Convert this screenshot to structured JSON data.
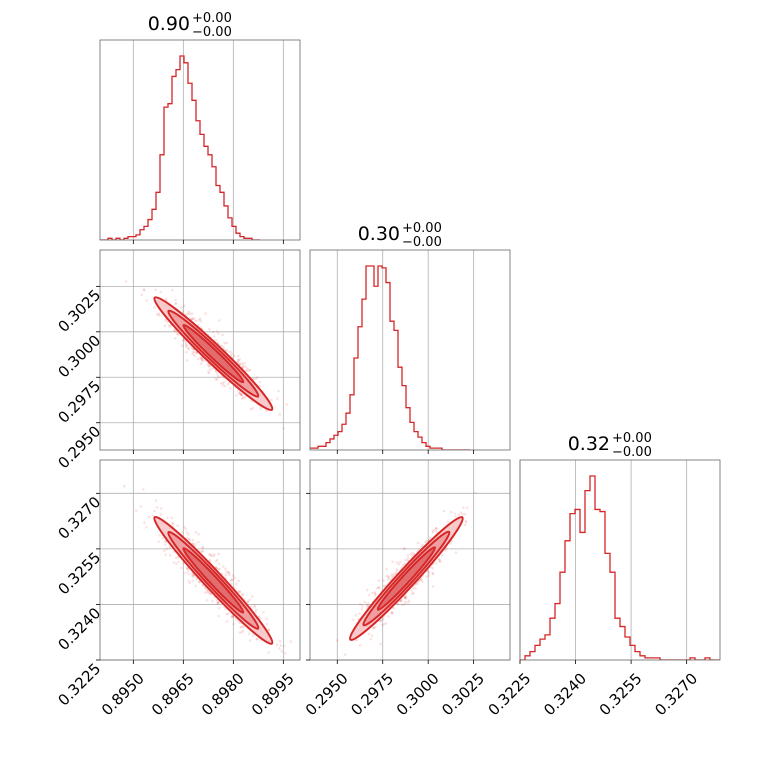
{
  "chart_data": [
    {
      "type": "histogram",
      "parameter": "p1",
      "panel": [
        0,
        0
      ],
      "title": {
        "value": "0.90",
        "upper": "+0.00",
        "lower": "−0.00"
      },
      "xlim": [
        0.894,
        0.9
      ],
      "xticks": [
        0.895,
        0.8965,
        0.898,
        0.8995
      ],
      "bin_edges_start": 0.894,
      "bin_width": 0.00012,
      "counts": [
        0,
        0,
        1,
        0,
        1,
        0,
        1,
        2,
        2,
        3,
        6,
        8,
        12,
        18,
        28,
        50,
        78,
        80,
        96,
        100,
        108,
        104,
        92,
        82,
        70,
        62,
        55,
        50,
        43,
        32,
        28,
        20,
        13,
        8,
        4,
        2,
        1,
        1,
        0,
        0
      ],
      "color": "#d62728"
    },
    {
      "type": "histogram",
      "parameter": "p2",
      "panel": [
        1,
        1
      ],
      "title": {
        "value": "0.30",
        "upper": "+0.00",
        "lower": "−0.00"
      },
      "xlim": [
        0.2935,
        0.3045
      ],
      "xticks": [
        0.295,
        0.2975,
        0.3,
        0.3025
      ],
      "bin_edges_start": 0.2935,
      "bin_width": 0.00022,
      "counts": [
        1,
        1,
        2,
        2,
        4,
        6,
        8,
        10,
        14,
        20,
        30,
        50,
        67,
        82,
        100,
        100,
        89,
        100,
        99,
        91,
        70,
        65,
        45,
        35,
        23,
        15,
        10,
        7,
        4,
        2,
        1,
        1,
        1,
        0,
        0,
        0,
        0,
        0,
        0,
        0
      ],
      "color": "#d62728"
    },
    {
      "type": "histogram",
      "parameter": "p3",
      "panel": [
        2,
        2
      ],
      "title": {
        "value": "0.32",
        "upper": "+0.00",
        "lower": "−0.00"
      },
      "xlim": [
        0.3225,
        0.3279
      ],
      "xticks": [
        0.3225,
        0.324,
        0.3255,
        0.327
      ],
      "bin_edges_start": 0.3225,
      "bin_width": 0.000135,
      "counts": [
        0,
        2,
        4,
        7,
        10,
        12,
        20,
        27,
        42,
        57,
        70,
        72,
        61,
        81,
        88,
        72,
        71,
        51,
        42,
        20,
        16,
        11,
        7,
        4,
        2,
        1,
        1,
        1,
        0,
        0,
        0,
        0,
        0,
        0,
        1,
        0,
        0,
        1,
        0,
        0
      ],
      "color": "#d62728"
    },
    {
      "type": "scatter",
      "panel": [
        1,
        0
      ],
      "x_param": "p1",
      "y_param": "p2",
      "xlim": [
        0.894,
        0.9
      ],
      "ylim": [
        0.2935,
        0.3045
      ],
      "xticks": [
        0.895,
        0.8965,
        0.898,
        0.8995
      ],
      "yticks": [
        0.295,
        0.2975,
        0.3,
        0.3025
      ],
      "trend_from": [
        0.8958,
        0.3016
      ],
      "trend_to": [
        0.899,
        0.296
      ],
      "contour_levels": 3,
      "color": "#d62728"
    },
    {
      "type": "scatter",
      "panel": [
        2,
        0
      ],
      "x_param": "p1",
      "y_param": "p3",
      "xlim": [
        0.894,
        0.9
      ],
      "ylim": [
        0.3225,
        0.3279
      ],
      "xticks": [
        0.895,
        0.8965,
        0.898,
        0.8995
      ],
      "yticks": [
        0.3225,
        0.324,
        0.3255,
        0.327
      ],
      "trend_from": [
        0.8958,
        0.3262
      ],
      "trend_to": [
        0.899,
        0.3231
      ],
      "contour_levels": 3,
      "color": "#d62728"
    },
    {
      "type": "scatter",
      "panel": [
        2,
        1
      ],
      "x_param": "p2",
      "y_param": "p3",
      "xlim": [
        0.2935,
        0.3045
      ],
      "ylim": [
        0.3225,
        0.3279
      ],
      "xticks": [
        0.295,
        0.2975,
        0.3,
        0.3025
      ],
      "yticks": [
        0.3225,
        0.324,
        0.3255,
        0.327
      ],
      "trend_from": [
        0.296,
        0.3232
      ],
      "trend_to": [
        0.3016,
        0.3262
      ],
      "contour_levels": 3,
      "color": "#d62728"
    }
  ]
}
